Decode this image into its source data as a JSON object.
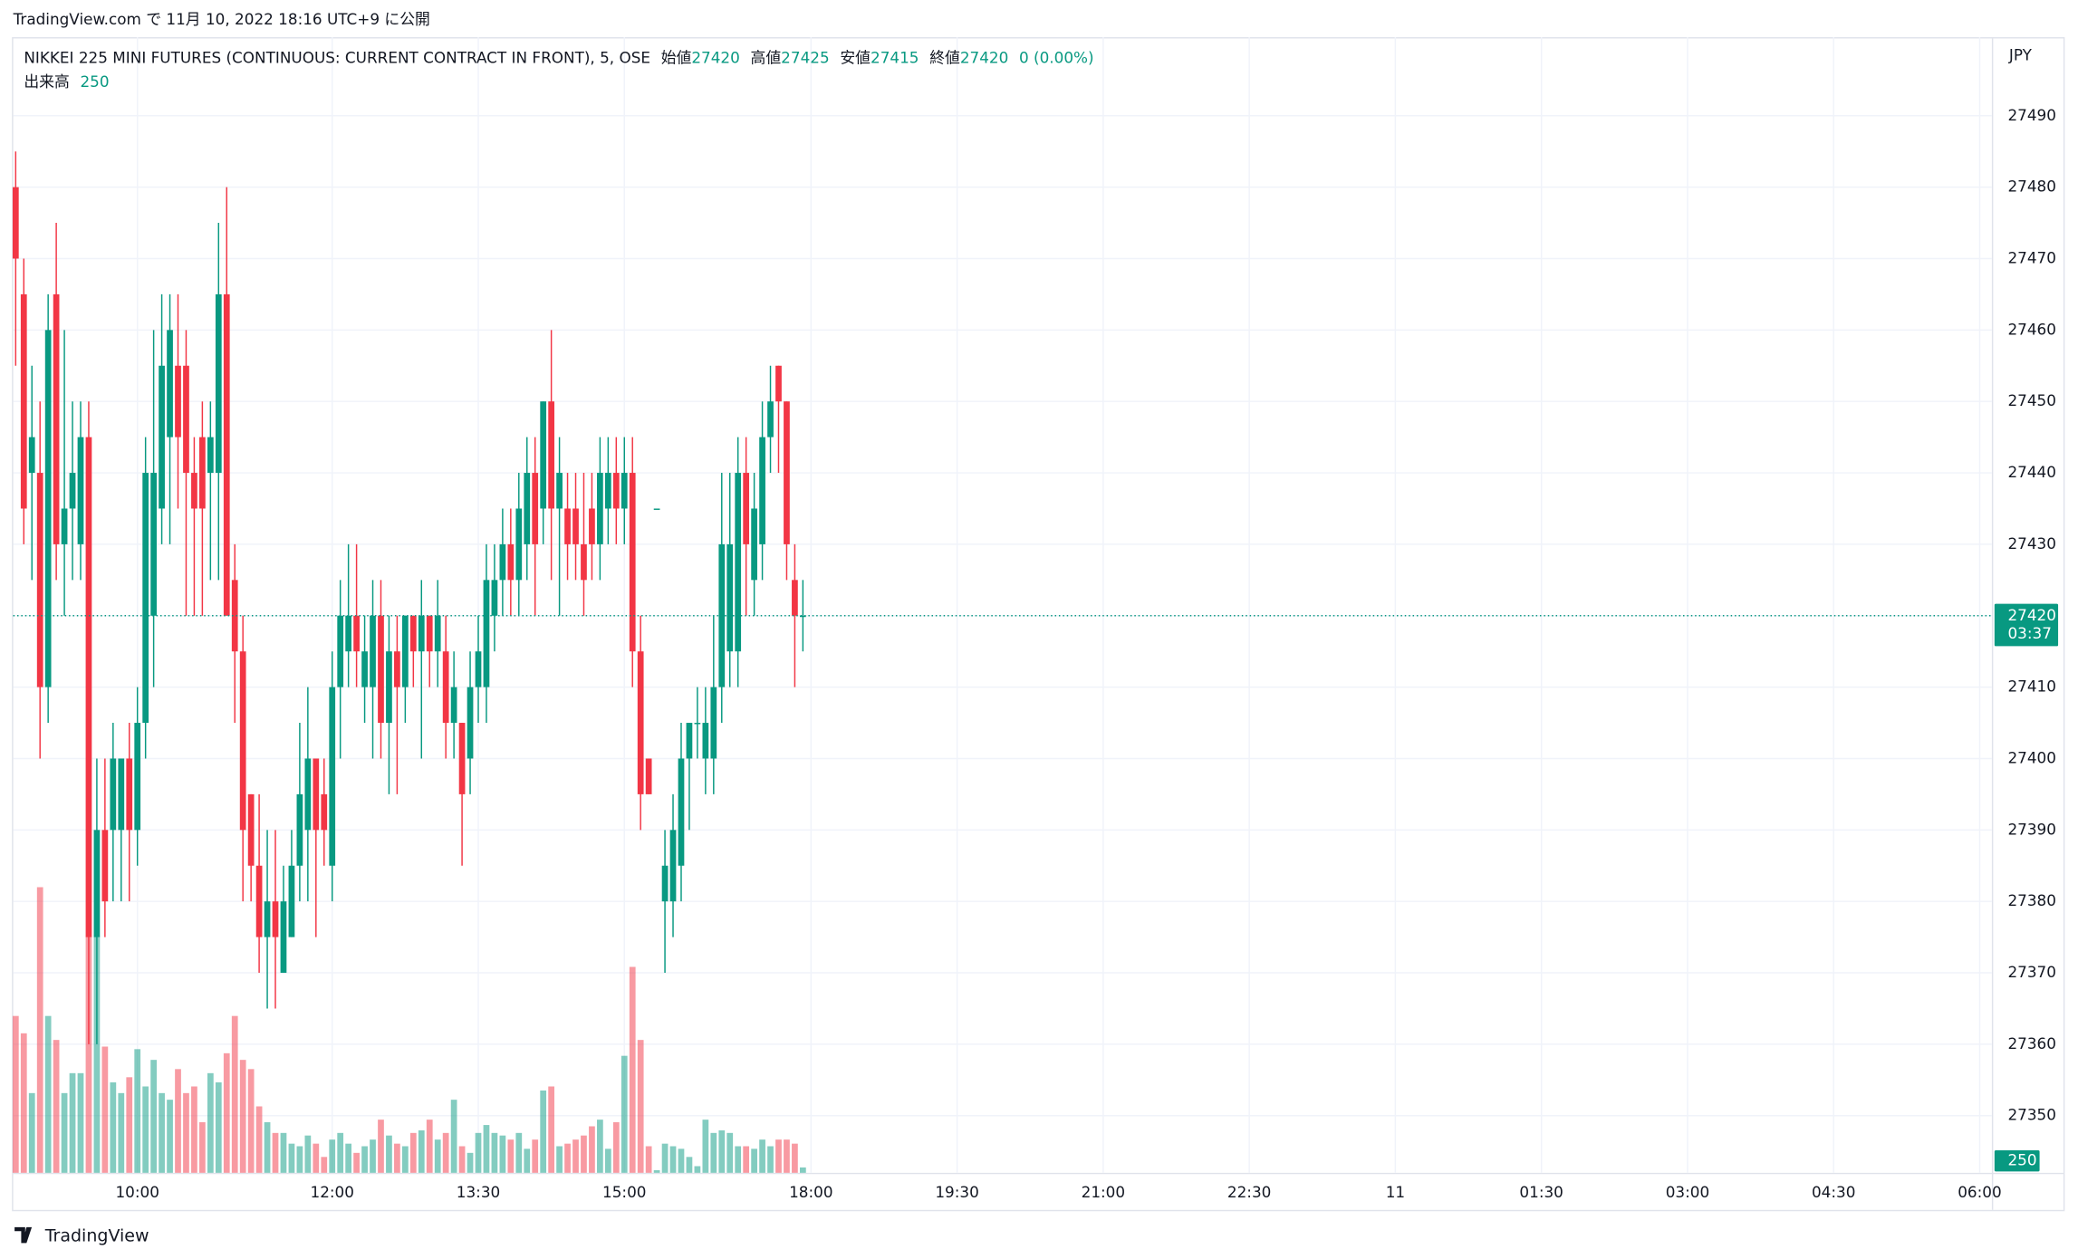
{
  "header": {
    "published": "TradingView.com で 11月 10, 2022 18:16 UTC+9 に公開"
  },
  "footer": {
    "brand": "TradingView"
  },
  "chart_data": {
    "type": "candlestick",
    "title": "NIKKEI 225 MINI FUTURES (CONTINUOUS: CURRENT CONTRACT IN FRONT), 5, OSE",
    "legend": {
      "open_label": "始値",
      "open": 27420,
      "high_label": "高値",
      "high": 27425,
      "low_label": "安値",
      "low": 27415,
      "close_label": "終値",
      "close": 27420,
      "change": "0 (0.00%)",
      "volume_label": "出来高",
      "volume": 250
    },
    "currency": "JPY",
    "last_price": 27420,
    "countdown": "03:37",
    "last_volume": 250,
    "up_color": "#089981",
    "down_color": "#f23645",
    "grid": true,
    "x": [
      0,
      1,
      2,
      3,
      4,
      5,
      6,
      7,
      8,
      9,
      10,
      11,
      12,
      13,
      14,
      15,
      16,
      17,
      18,
      19,
      20,
      21,
      22,
      23,
      24,
      25,
      26,
      27,
      28,
      29,
      30,
      31,
      32,
      33,
      34,
      35,
      36,
      37,
      38,
      39,
      40,
      41,
      42,
      43,
      44,
      45,
      46,
      47,
      48,
      49,
      50,
      51,
      52,
      53,
      54,
      55,
      56,
      57,
      58,
      59,
      60,
      61,
      62,
      63,
      64,
      65,
      66,
      67,
      68,
      69,
      70,
      71,
      72,
      73,
      74,
      75,
      76,
      77,
      78,
      79,
      80,
      81,
      82,
      83,
      84,
      85,
      86,
      87,
      88,
      89,
      90,
      91,
      92,
      93,
      94,
      95,
      96,
      97
    ],
    "open": [
      27480,
      27465,
      27440,
      27440,
      27410,
      27465,
      27430,
      27435,
      27430,
      27445,
      27375,
      27390,
      27390,
      27390,
      27400,
      27390,
      27405,
      27420,
      27435,
      27445,
      27455,
      27455,
      27440,
      27445,
      27440,
      27440,
      27465,
      27425,
      27415,
      27395,
      27385,
      27375,
      27380,
      27370,
      27375,
      27385,
      27390,
      27400,
      27395,
      27385,
      27410,
      27415,
      27420,
      27410,
      27410,
      27420,
      27405,
      27415,
      27410,
      27420,
      27415,
      27420,
      27415,
      27415,
      27405,
      27405,
      27400,
      27410,
      27410,
      27420,
      27425,
      27430,
      27425,
      27430,
      27440,
      27435,
      27450,
      27435,
      27435,
      27435,
      27430,
      27435,
      27430,
      27435,
      27440,
      27435,
      27440,
      27415,
      27400,
      27435,
      27380,
      27380,
      27385,
      27400,
      27405,
      27400,
      27400,
      27410,
      27415,
      27415,
      27440,
      27425,
      27430,
      27445,
      27455,
      27450,
      27425,
      27420
    ],
    "close": [
      27470,
      27435,
      27445,
      27410,
      27460,
      27430,
      27435,
      27440,
      27445,
      27375,
      27390,
      27380,
      27400,
      27400,
      27390,
      27405,
      27440,
      27440,
      27455,
      27460,
      27445,
      27440,
      27435,
      27435,
      27445,
      27465,
      27420,
      27415,
      27390,
      27385,
      27375,
      27380,
      27375,
      27380,
      27385,
      27395,
      27400,
      27390,
      27390,
      27410,
      27420,
      27420,
      27415,
      27415,
      27420,
      27405,
      27415,
      27410,
      27420,
      27415,
      27420,
      27415,
      27420,
      27405,
      27410,
      27395,
      27410,
      27415,
      27425,
      27425,
      27430,
      27425,
      27435,
      27440,
      27430,
      27450,
      27435,
      27440,
      27430,
      27430,
      27425,
      27430,
      27440,
      27440,
      27435,
      27440,
      27415,
      27395,
      27395,
      27435,
      27385,
      27390,
      27400,
      27405,
      27405,
      27405,
      27410,
      27430,
      27430,
      27440,
      27430,
      27435,
      27445,
      27450,
      27450,
      27430,
      27420,
      27420
    ],
    "high": [
      27485,
      27470,
      27455,
      27450,
      27465,
      27475,
      27460,
      27450,
      27450,
      27450,
      27400,
      27400,
      27405,
      27400,
      27405,
      27410,
      27445,
      27460,
      27465,
      27465,
      27465,
      27460,
      27445,
      27450,
      27450,
      27475,
      27480,
      27430,
      27420,
      27395,
      27395,
      27390,
      27390,
      27385,
      27390,
      27405,
      27410,
      27400,
      27400,
      27415,
      27425,
      27430,
      27430,
      27420,
      27425,
      27425,
      27420,
      27420,
      27420,
      27420,
      27425,
      27420,
      27425,
      27420,
      27415,
      27405,
      27415,
      27420,
      27430,
      27430,
      27435,
      27435,
      27440,
      27445,
      27445,
      27450,
      27460,
      27445,
      27440,
      27440,
      27440,
      27440,
      27445,
      27445,
      27445,
      27445,
      27445,
      27420,
      27400,
      27435,
      27390,
      27395,
      27405,
      27405,
      27410,
      27410,
      27420,
      27440,
      27440,
      27445,
      27445,
      27440,
      27450,
      27455,
      27455,
      27450,
      27430,
      27425
    ],
    "low": [
      27455,
      27430,
      27425,
      27400,
      27405,
      27425,
      27420,
      27425,
      27425,
      27360,
      27360,
      27375,
      27380,
      27380,
      27380,
      27385,
      27400,
      27410,
      27430,
      27430,
      27435,
      27420,
      27420,
      27420,
      27425,
      27425,
      27420,
      27405,
      27380,
      27380,
      27370,
      27365,
      27365,
      27370,
      27375,
      27380,
      27380,
      27375,
      27385,
      27380,
      27400,
      27410,
      27410,
      27405,
      27400,
      27400,
      27395,
      27395,
      27405,
      27410,
      27400,
      27410,
      27410,
      27400,
      27400,
      27385,
      27395,
      27405,
      27405,
      27415,
      27420,
      27420,
      27420,
      27425,
      27420,
      27430,
      27425,
      27420,
      27425,
      27425,
      27420,
      27425,
      27425,
      27430,
      27430,
      27430,
      27410,
      27390,
      27395,
      27435,
      27370,
      27375,
      27380,
      27390,
      27400,
      27395,
      27395,
      27405,
      27410,
      27410,
      27420,
      27420,
      27425,
      27440,
      27440,
      27425,
      27410,
      27415
    ],
    "volume": [
      7320,
      6510,
      3720,
      13330,
      7320,
      6200,
      3720,
      4650,
      4650,
      11040,
      11040,
      5890,
      4220,
      3720,
      4460,
      5770,
      4030,
      5270,
      3720,
      3410,
      4840,
      3720,
      4030,
      2360,
      4650,
      4220,
      5580,
      7320,
      5270,
      4840,
      3100,
      2360,
      1860,
      1860,
      1360,
      1240,
      1740,
      1360,
      740,
      1550,
      1860,
      1360,
      930,
      1240,
      1550,
      2480,
      1740,
      1360,
      1240,
      1860,
      1980,
      2480,
      1550,
      1860,
      3410,
      1240,
      930,
      1860,
      2230,
      1860,
      1740,
      1550,
      1860,
      1120,
      1550,
      3840,
      4030,
      1240,
      1360,
      1550,
      1740,
      2170,
      2480,
      1120,
      2360,
      5460,
      9610,
      6200,
      1240,
      120,
      1360,
      1240,
      1120,
      740,
      310,
      2480,
      1860,
      1980,
      1860,
      1240,
      1240,
      1120,
      1550,
      1240,
      1550,
      1550,
      1360,
      250
    ],
    "xlim": [
      -0.3,
      243.5
    ],
    "xticks": [
      {
        "value": 15,
        "label": "10:00"
      },
      {
        "value": 39,
        "label": "12:00"
      },
      {
        "value": 57,
        "label": "13:30"
      },
      {
        "value": 75,
        "label": "15:00"
      },
      {
        "value": 98,
        "label": "18:00"
      },
      {
        "value": 116,
        "label": "19:30"
      },
      {
        "value": 134,
        "label": "21:00"
      },
      {
        "value": 152,
        "label": "22:30"
      },
      {
        "value": 170,
        "label": "11"
      },
      {
        "value": 188,
        "label": "01:30"
      },
      {
        "value": 206,
        "label": "03:00"
      },
      {
        "value": 224,
        "label": "04:30"
      },
      {
        "value": 242,
        "label": "06:00"
      }
    ],
    "ylim": [
      27342,
      27501
    ],
    "yticks": [
      27350,
      27360,
      27370,
      27380,
      27390,
      27400,
      27410,
      27420,
      27430,
      27440,
      27450,
      27460,
      27470,
      27480,
      27490
    ],
    "volume_ylim": [
      0,
      53000
    ]
  }
}
